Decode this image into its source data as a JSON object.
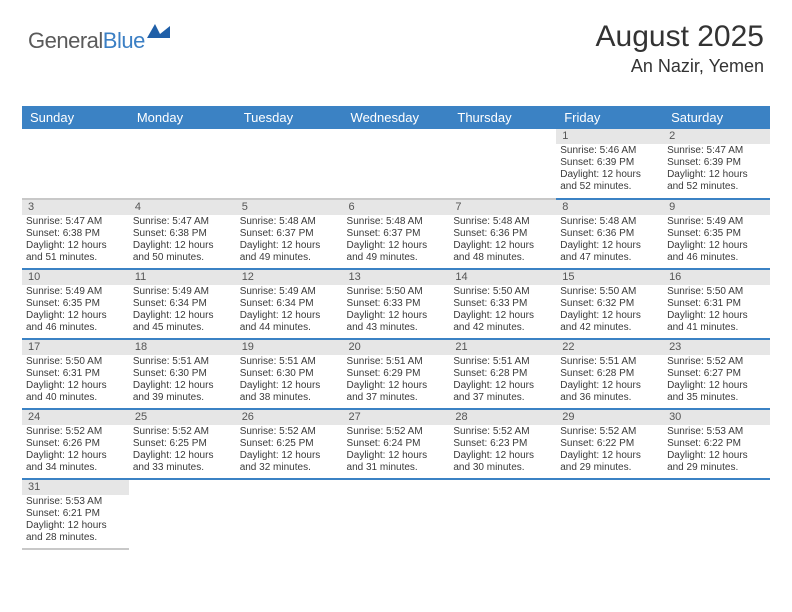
{
  "logo": {
    "general": "General",
    "blue": "Blue"
  },
  "header": {
    "title": "August 2025",
    "location": "An Nazir, Yemen"
  },
  "colors": {
    "header_bg": "#3b82c4",
    "header_text": "#ffffff",
    "day_num_bg": "#e6e6e6",
    "row_sep": "#c8c8c8",
    "row_bottom": "#3b82c4",
    "logo_gray": "#5a5a5a",
    "logo_blue": "#3b7fc4"
  },
  "weekdays": [
    "Sunday",
    "Monday",
    "Tuesday",
    "Wednesday",
    "Thursday",
    "Friday",
    "Saturday"
  ],
  "weeks": [
    [
      null,
      null,
      null,
      null,
      null,
      {
        "n": "1",
        "sr": "Sunrise: 5:46 AM",
        "ss": "Sunset: 6:39 PM",
        "dl": "Daylight: 12 hours and 52 minutes."
      },
      {
        "n": "2",
        "sr": "Sunrise: 5:47 AM",
        "ss": "Sunset: 6:39 PM",
        "dl": "Daylight: 12 hours and 52 minutes."
      }
    ],
    [
      {
        "n": "3",
        "sr": "Sunrise: 5:47 AM",
        "ss": "Sunset: 6:38 PM",
        "dl": "Daylight: 12 hours and 51 minutes."
      },
      {
        "n": "4",
        "sr": "Sunrise: 5:47 AM",
        "ss": "Sunset: 6:38 PM",
        "dl": "Daylight: 12 hours and 50 minutes."
      },
      {
        "n": "5",
        "sr": "Sunrise: 5:48 AM",
        "ss": "Sunset: 6:37 PM",
        "dl": "Daylight: 12 hours and 49 minutes."
      },
      {
        "n": "6",
        "sr": "Sunrise: 5:48 AM",
        "ss": "Sunset: 6:37 PM",
        "dl": "Daylight: 12 hours and 49 minutes."
      },
      {
        "n": "7",
        "sr": "Sunrise: 5:48 AM",
        "ss": "Sunset: 6:36 PM",
        "dl": "Daylight: 12 hours and 48 minutes."
      },
      {
        "n": "8",
        "sr": "Sunrise: 5:48 AM",
        "ss": "Sunset: 6:36 PM",
        "dl": "Daylight: 12 hours and 47 minutes."
      },
      {
        "n": "9",
        "sr": "Sunrise: 5:49 AM",
        "ss": "Sunset: 6:35 PM",
        "dl": "Daylight: 12 hours and 46 minutes."
      }
    ],
    [
      {
        "n": "10",
        "sr": "Sunrise: 5:49 AM",
        "ss": "Sunset: 6:35 PM",
        "dl": "Daylight: 12 hours and 46 minutes."
      },
      {
        "n": "11",
        "sr": "Sunrise: 5:49 AM",
        "ss": "Sunset: 6:34 PM",
        "dl": "Daylight: 12 hours and 45 minutes."
      },
      {
        "n": "12",
        "sr": "Sunrise: 5:49 AM",
        "ss": "Sunset: 6:34 PM",
        "dl": "Daylight: 12 hours and 44 minutes."
      },
      {
        "n": "13",
        "sr": "Sunrise: 5:50 AM",
        "ss": "Sunset: 6:33 PM",
        "dl": "Daylight: 12 hours and 43 minutes."
      },
      {
        "n": "14",
        "sr": "Sunrise: 5:50 AM",
        "ss": "Sunset: 6:33 PM",
        "dl": "Daylight: 12 hours and 42 minutes."
      },
      {
        "n": "15",
        "sr": "Sunrise: 5:50 AM",
        "ss": "Sunset: 6:32 PM",
        "dl": "Daylight: 12 hours and 42 minutes."
      },
      {
        "n": "16",
        "sr": "Sunrise: 5:50 AM",
        "ss": "Sunset: 6:31 PM",
        "dl": "Daylight: 12 hours and 41 minutes."
      }
    ],
    [
      {
        "n": "17",
        "sr": "Sunrise: 5:50 AM",
        "ss": "Sunset: 6:31 PM",
        "dl": "Daylight: 12 hours and 40 minutes."
      },
      {
        "n": "18",
        "sr": "Sunrise: 5:51 AM",
        "ss": "Sunset: 6:30 PM",
        "dl": "Daylight: 12 hours and 39 minutes."
      },
      {
        "n": "19",
        "sr": "Sunrise: 5:51 AM",
        "ss": "Sunset: 6:30 PM",
        "dl": "Daylight: 12 hours and 38 minutes."
      },
      {
        "n": "20",
        "sr": "Sunrise: 5:51 AM",
        "ss": "Sunset: 6:29 PM",
        "dl": "Daylight: 12 hours and 37 minutes."
      },
      {
        "n": "21",
        "sr": "Sunrise: 5:51 AM",
        "ss": "Sunset: 6:28 PM",
        "dl": "Daylight: 12 hours and 37 minutes."
      },
      {
        "n": "22",
        "sr": "Sunrise: 5:51 AM",
        "ss": "Sunset: 6:28 PM",
        "dl": "Daylight: 12 hours and 36 minutes."
      },
      {
        "n": "23",
        "sr": "Sunrise: 5:52 AM",
        "ss": "Sunset: 6:27 PM",
        "dl": "Daylight: 12 hours and 35 minutes."
      }
    ],
    [
      {
        "n": "24",
        "sr": "Sunrise: 5:52 AM",
        "ss": "Sunset: 6:26 PM",
        "dl": "Daylight: 12 hours and 34 minutes."
      },
      {
        "n": "25",
        "sr": "Sunrise: 5:52 AM",
        "ss": "Sunset: 6:25 PM",
        "dl": "Daylight: 12 hours and 33 minutes."
      },
      {
        "n": "26",
        "sr": "Sunrise: 5:52 AM",
        "ss": "Sunset: 6:25 PM",
        "dl": "Daylight: 12 hours and 32 minutes."
      },
      {
        "n": "27",
        "sr": "Sunrise: 5:52 AM",
        "ss": "Sunset: 6:24 PM",
        "dl": "Daylight: 12 hours and 31 minutes."
      },
      {
        "n": "28",
        "sr": "Sunrise: 5:52 AM",
        "ss": "Sunset: 6:23 PM",
        "dl": "Daylight: 12 hours and 30 minutes."
      },
      {
        "n": "29",
        "sr": "Sunrise: 5:52 AM",
        "ss": "Sunset: 6:22 PM",
        "dl": "Daylight: 12 hours and 29 minutes."
      },
      {
        "n": "30",
        "sr": "Sunrise: 5:53 AM",
        "ss": "Sunset: 6:22 PM",
        "dl": "Daylight: 12 hours and 29 minutes."
      }
    ],
    [
      {
        "n": "31",
        "sr": "Sunrise: 5:53 AM",
        "ss": "Sunset: 6:21 PM",
        "dl": "Daylight: 12 hours and 28 minutes."
      },
      null,
      null,
      null,
      null,
      null,
      null
    ]
  ]
}
